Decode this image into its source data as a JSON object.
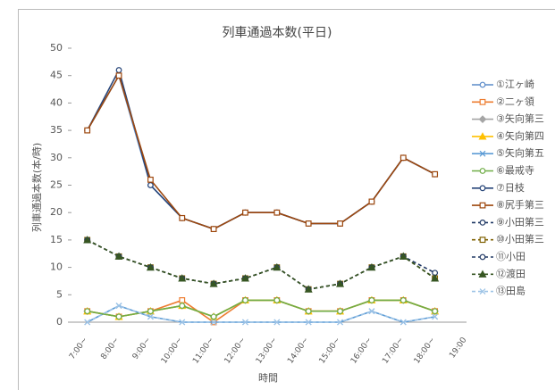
{
  "chart_data": {
    "type": "line",
    "title": "列車通過本数(平日)",
    "y_label": "列車通過本数(本/時)",
    "x_label": "時間",
    "categories": [
      "7:00~",
      "8:00~",
      "9:00~",
      "10:00~",
      "11:00~",
      "12:00~",
      "13:00~",
      "14:00~",
      "15:00~",
      "16:00~",
      "17:00~",
      "18:00~",
      "19:00"
    ],
    "ylim": [
      0,
      50
    ],
    "yticks": [
      0,
      5,
      10,
      15,
      20,
      25,
      30,
      35,
      40,
      45,
      50
    ],
    "grid": false,
    "series": [
      {
        "name": "①江ヶ崎",
        "color": "#5b8bc9",
        "marker": "circle",
        "dash": false,
        "values": [
          35,
          45,
          25,
          19,
          17,
          20,
          20,
          18,
          18,
          22,
          30,
          27,
          null
        ]
      },
      {
        "name": "②二ヶ領",
        "color": "#ed7d31",
        "marker": "square",
        "dash": false,
        "values": [
          2,
          1,
          2,
          4,
          0,
          4,
          4,
          2,
          2,
          4,
          4,
          2,
          null
        ]
      },
      {
        "name": "③矢向第三",
        "color": "#a5a5a5",
        "marker": "diamond",
        "dash": false,
        "values": [
          2,
          1,
          2,
          3,
          1,
          4,
          4,
          2,
          2,
          4,
          4,
          2,
          null
        ]
      },
      {
        "name": "④矢向第四",
        "color": "#ffc000",
        "marker": "triangle",
        "dash": false,
        "values": [
          2,
          1,
          2,
          3,
          1,
          4,
          4,
          2,
          2,
          4,
          4,
          2,
          null
        ]
      },
      {
        "name": "⑤矢向第五",
        "color": "#5b9bd5",
        "marker": "x",
        "dash": false,
        "values": [
          0,
          3,
          1,
          0,
          0,
          0,
          0,
          0,
          0,
          2,
          0,
          1,
          null
        ]
      },
      {
        "name": "⑥最戒寺",
        "color": "#70ad47",
        "marker": "circle",
        "dash": false,
        "values": [
          2,
          1,
          2,
          3,
          1,
          4,
          4,
          2,
          2,
          4,
          4,
          2,
          null
        ]
      },
      {
        "name": "⑦日枝",
        "color": "#264478",
        "marker": "circle",
        "dash": false,
        "values": [
          35,
          46,
          25,
          19,
          17,
          20,
          20,
          18,
          18,
          22,
          30,
          27,
          null
        ]
      },
      {
        "name": "⑧尻手第三",
        "color": "#9e480e",
        "marker": "square",
        "dash": false,
        "values": [
          35,
          45,
          26,
          19,
          17,
          20,
          20,
          18,
          18,
          22,
          30,
          27,
          null
        ]
      },
      {
        "name": "⑨小田第三",
        "color": "#1f3864",
        "marker": "circle",
        "dash": true,
        "values": [
          15,
          12,
          10,
          8,
          7,
          8,
          10,
          6,
          7,
          10,
          12,
          8,
          null
        ]
      },
      {
        "name": "⑩小田第三",
        "color": "#7f6000",
        "marker": "square",
        "dash": true,
        "values": [
          15,
          12,
          10,
          8,
          7,
          8,
          10,
          6,
          7,
          10,
          12,
          8,
          null
        ]
      },
      {
        "name": "⑪小田",
        "color": "#203864",
        "marker": "circle",
        "dash": true,
        "values": [
          15,
          12,
          10,
          8,
          7,
          8,
          10,
          6,
          7,
          10,
          12,
          9,
          null
        ]
      },
      {
        "name": "⑫渡田",
        "color": "#375623",
        "marker": "triangle",
        "dash": true,
        "values": [
          15,
          12,
          10,
          8,
          7,
          8,
          10,
          6,
          7,
          10,
          12,
          8,
          null
        ]
      },
      {
        "name": "⑬田島",
        "color": "#9dc3e6",
        "marker": "x",
        "dash": true,
        "values": [
          0,
          3,
          1,
          0,
          0,
          0,
          0,
          0,
          0,
          2,
          0,
          1,
          null
        ]
      }
    ]
  }
}
